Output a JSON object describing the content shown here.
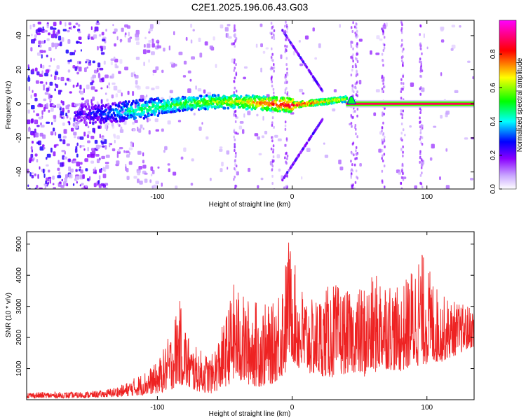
{
  "title": "C2E1.2025.196.06.43.G03",
  "chart_data": [
    {
      "type": "heatmap",
      "title": "C2E1.2025.196.06.43.G03",
      "xlabel": "Height of straight line (km)",
      "ylabel": "Frequency (Hz)",
      "xlim": [
        -197,
        135
      ],
      "ylim": [
        -50,
        49
      ],
      "x_ticks": [
        -100,
        0,
        100
      ],
      "y_ticks": [
        -40,
        -20,
        0,
        20,
        40
      ],
      "grid": false,
      "colorbar": {
        "label": "Normalized spectral amplitude",
        "range": [
          0,
          1
        ],
        "ticks": [
          "0.0",
          "0.2",
          "0.4",
          "0.6",
          "0.8"
        ],
        "colors": [
          "#ffffff",
          "#8a00ff",
          "#0000ff",
          "#00ffff",
          "#00ff00",
          "#ffff00",
          "#ff0000",
          "#ff00ff"
        ]
      },
      "main_band": {
        "description_points": [
          {
            "x": -160,
            "y": -5,
            "amp": 0.2
          },
          {
            "x": -140,
            "y": -5,
            "amp": 0.3
          },
          {
            "x": -120,
            "y": -3,
            "amp": 0.45
          },
          {
            "x": -100,
            "y": -1,
            "amp": 0.5
          },
          {
            "x": -80,
            "y": 1,
            "amp": 0.55
          },
          {
            "x": -60,
            "y": 2,
            "amp": 0.6
          },
          {
            "x": -40,
            "y": 2,
            "amp": 0.65
          },
          {
            "x": -20,
            "y": 1,
            "amp": 0.8
          },
          {
            "x": 0,
            "y": 0,
            "amp": 0.9
          },
          {
            "x": 44,
            "y": 4,
            "amp": 0.6
          },
          {
            "x": 60,
            "y": 0,
            "amp": 1.0
          },
          {
            "x": 135,
            "y": 0,
            "amp": 1.0
          }
        ]
      }
    },
    {
      "type": "line",
      "xlabel": "Height of straight line (km)",
      "ylabel": "SNR (10 * v/v)",
      "xlim": [
        -197,
        135
      ],
      "ylim": [
        0,
        5400
      ],
      "x_ticks": [
        -100,
        0,
        100
      ],
      "y_ticks": [
        1000,
        2000,
        3000,
        4000,
        5000
      ],
      "grid": false,
      "series": [
        {
          "color": "#ee2222",
          "envelope": [
            {
              "x": -197,
              "low": 50,
              "high": 250
            },
            {
              "x": -160,
              "low": 50,
              "high": 250
            },
            {
              "x": -140,
              "low": 80,
              "high": 300
            },
            {
              "x": -125,
              "low": 100,
              "high": 500
            },
            {
              "x": -110,
              "low": 150,
              "high": 900
            },
            {
              "x": -100,
              "low": 200,
              "high": 1200
            },
            {
              "x": -90,
              "low": 300,
              "high": 2200
            },
            {
              "x": -84,
              "low": 500,
              "high": 3300
            },
            {
              "x": -75,
              "low": 300,
              "high": 1800
            },
            {
              "x": -60,
              "low": 200,
              "high": 1400
            },
            {
              "x": -50,
              "low": 400,
              "high": 2600
            },
            {
              "x": -43,
              "low": 600,
              "high": 3800
            },
            {
              "x": -35,
              "low": 500,
              "high": 3300
            },
            {
              "x": -25,
              "low": 400,
              "high": 3200
            },
            {
              "x": -15,
              "low": 500,
              "high": 3000
            },
            {
              "x": -5,
              "low": 800,
              "high": 4500
            },
            {
              "x": -3,
              "low": 1500,
              "high": 5300
            },
            {
              "x": 5,
              "low": 900,
              "high": 3800
            },
            {
              "x": 15,
              "low": 800,
              "high": 3200
            },
            {
              "x": 30,
              "low": 700,
              "high": 3800
            },
            {
              "x": 44,
              "low": 900,
              "high": 3400
            },
            {
              "x": 55,
              "low": 700,
              "high": 3800
            },
            {
              "x": 67,
              "low": 1000,
              "high": 4200
            },
            {
              "x": 80,
              "low": 900,
              "high": 3500
            },
            {
              "x": 95,
              "low": 1100,
              "high": 4900
            },
            {
              "x": 110,
              "low": 1200,
              "high": 3400
            },
            {
              "x": 125,
              "low": 1500,
              "high": 3100
            },
            {
              "x": 135,
              "low": 1700,
              "high": 3000
            }
          ]
        }
      ]
    }
  ]
}
